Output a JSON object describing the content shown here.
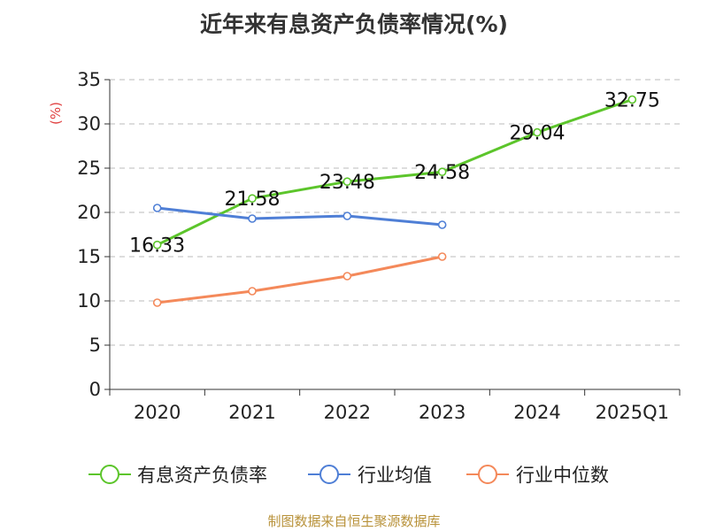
{
  "chart_data": {
    "type": "line",
    "title": "近年来有息资产负债率情况(%)",
    "ylabel": "(%)",
    "xlabel": "",
    "categories": [
      "2020",
      "2021",
      "2022",
      "2023",
      "2024",
      "2025Q1"
    ],
    "ylim": [
      0,
      35
    ],
    "yticks": [
      0,
      5,
      10,
      15,
      20,
      25,
      30,
      35
    ],
    "grid": true,
    "legend_position": "bottom",
    "series": [
      {
        "name": "有息资产负债率",
        "color": "#5cc52b",
        "values": [
          16.33,
          21.58,
          23.48,
          24.58,
          29.04,
          32.75
        ],
        "labels": [
          "16.33",
          "21.58",
          "23.48",
          "24.58",
          "29.04",
          "32.75"
        ]
      },
      {
        "name": "行业均值",
        "color": "#4f7fd6",
        "values": [
          20.5,
          19.3,
          19.6,
          18.6,
          null,
          null
        ]
      },
      {
        "name": "行业中位数",
        "color": "#f4895a",
        "values": [
          9.8,
          11.1,
          12.8,
          15.0,
          null,
          null
        ]
      }
    ]
  },
  "source": "制图数据来自恒生聚源数据库"
}
